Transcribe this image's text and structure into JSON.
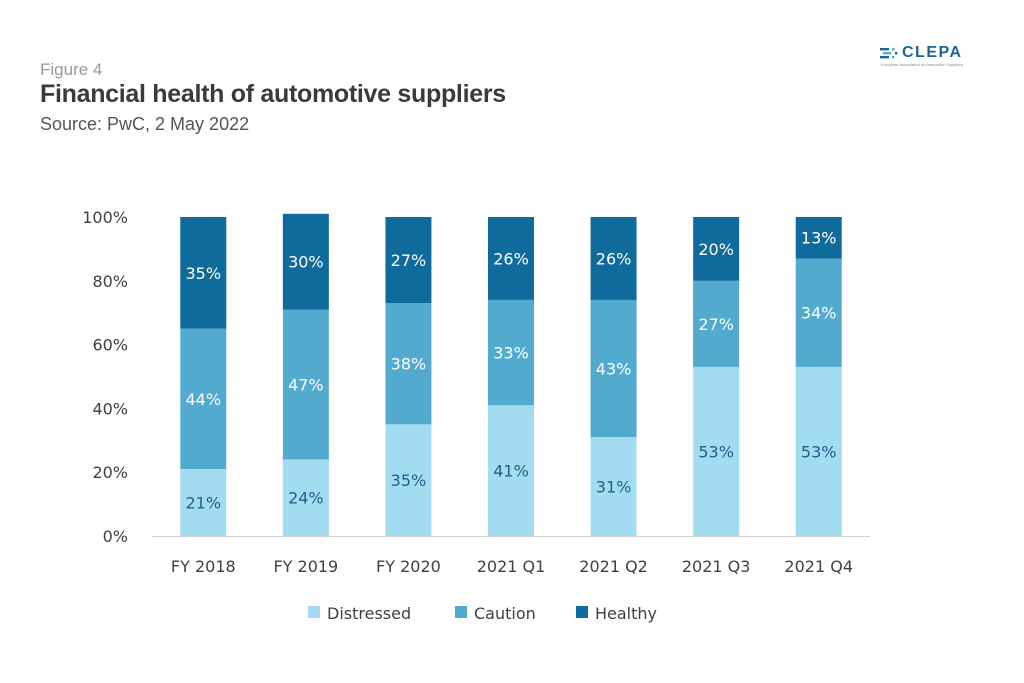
{
  "header": {
    "figure_label": "Figure 4",
    "title": "Financial health of automotive suppliers",
    "subtitle": "Source: PwC, 2 May 2022"
  },
  "logo": {
    "name": "CLEPA",
    "tagline": "European Association of Automotive Suppliers",
    "icon": "clepa-logo-icon"
  },
  "colors": {
    "distressed": "#a3dcf1",
    "caution": "#52abcf",
    "healthy": "#0f6b9c",
    "label_dark": "#1f5f8c",
    "label_light": "#ffffff"
  },
  "chart_data": {
    "type": "bar",
    "stacked": true,
    "categories": [
      "FY 2018",
      "FY 2019",
      "FY 2020",
      "2021 Q1",
      "2021 Q2",
      "2021 Q3",
      "2021 Q4"
    ],
    "series": [
      {
        "name": "Distressed",
        "values": [
          21,
          24,
          35,
          41,
          31,
          53,
          53
        ]
      },
      {
        "name": "Caution",
        "values": [
          44,
          47,
          38,
          33,
          43,
          27,
          34
        ]
      },
      {
        "name": "Healthy",
        "values": [
          35,
          30,
          27,
          26,
          26,
          20,
          13
        ]
      }
    ],
    "yticks": [
      "0%",
      "20%",
      "40%",
      "60%",
      "80%",
      "100%"
    ],
    "ylim": [
      0,
      100
    ],
    "legend_position": "bottom",
    "grid": false
  }
}
